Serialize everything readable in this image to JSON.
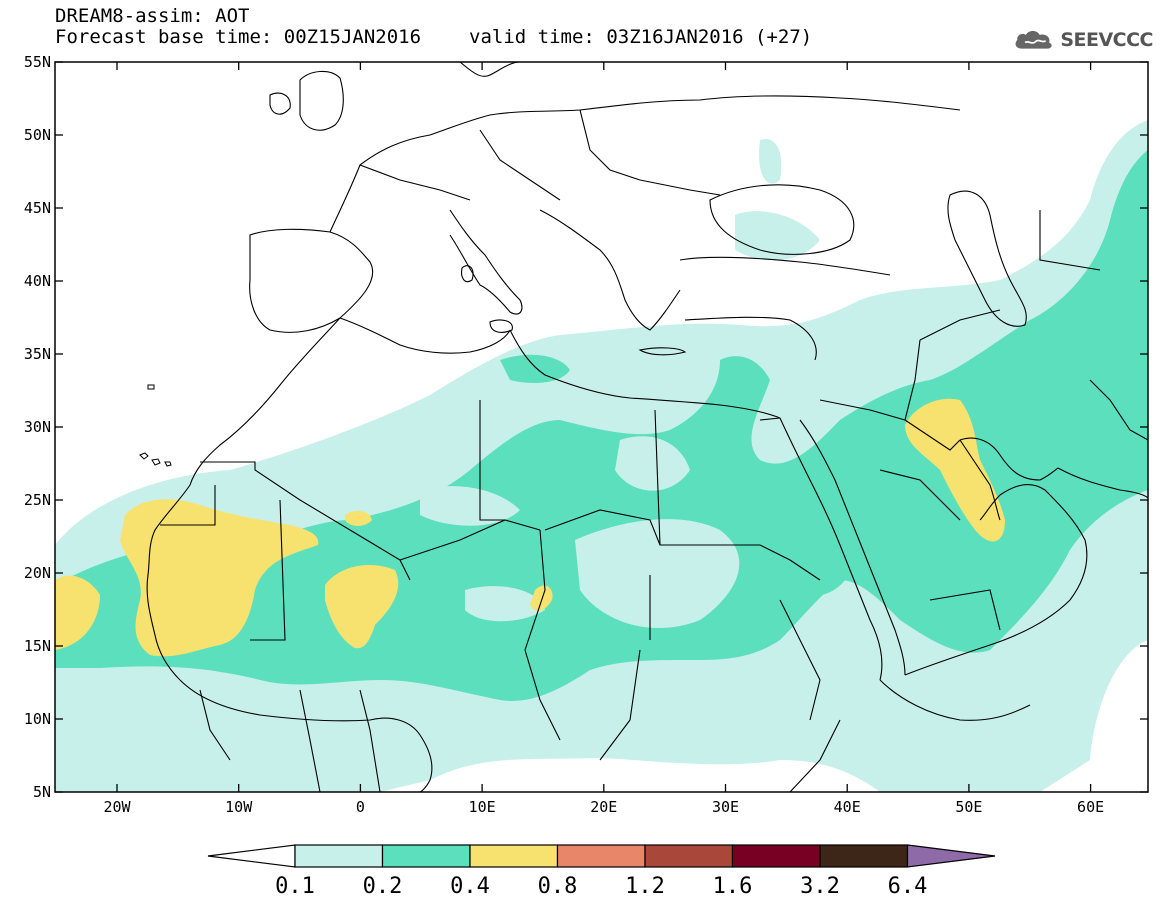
{
  "title": {
    "line1": "DREAM8-assim: AOT",
    "base_time": "Forecast base time: 00Z15JAN2016",
    "valid_time": "valid time: 03Z16JAN2016 (+27)"
  },
  "logo": {
    "text": "SEEVCCC",
    "icon": "cloud-icon"
  },
  "map": {
    "lon_labels": [
      "20W",
      "10W",
      "0",
      "10E",
      "20E",
      "30E",
      "40E",
      "50E",
      "60E"
    ],
    "lat_labels": [
      "55N",
      "50N",
      "45N",
      "40N",
      "35N",
      "30N",
      "25N",
      "20N",
      "15N",
      "10N",
      "5N"
    ]
  },
  "colorbar": {
    "labels": [
      "0.1",
      "0.2",
      "0.4",
      "0.8",
      "1.2",
      "1.6",
      "3.2",
      "6.4"
    ],
    "colors": [
      "#ffffff",
      "#c8f0ea",
      "#5cdfbc",
      "#f7e26f",
      "#e8866a",
      "#a8473a",
      "#780023",
      "#3d2618",
      "#8e6aa8"
    ]
  }
}
